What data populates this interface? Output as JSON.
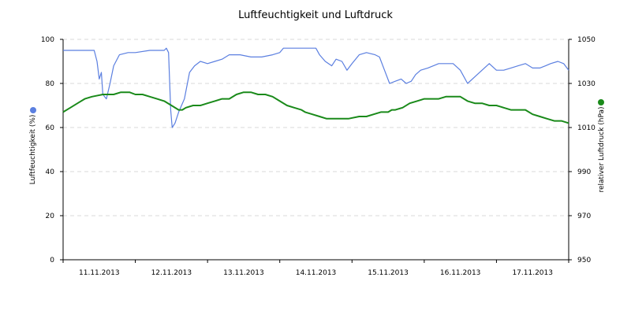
{
  "chart_data": {
    "type": "line",
    "title": "Luftfeuchtigkeit und Luftdruck",
    "categories": [
      "11.11.2013",
      "12.11.2013",
      "13.11.2013",
      "14.11.2013",
      "15.11.2013",
      "16.11.2013",
      "17.11.2013"
    ],
    "x_domain_days": [
      0,
      7
    ],
    "y_left": {
      "label": "Luftfeuchtigkeit (%)",
      "range": [
        0,
        100
      ],
      "ticks": [
        0,
        20,
        40,
        60,
        80,
        100
      ]
    },
    "y_right": {
      "label": "relativer Luftdruck (hPa)",
      "range": [
        950,
        1050
      ],
      "ticks": [
        950,
        970,
        990,
        1010,
        1030,
        1050
      ]
    },
    "grid": true,
    "series": [
      {
        "name": "Luftfeuchtigkeit (%)",
        "axis": "left",
        "color": "#5b7fe0",
        "points": [
          [
            0.0,
            95
          ],
          [
            0.43,
            95
          ],
          [
            0.47,
            90
          ],
          [
            0.5,
            82
          ],
          [
            0.53,
            85
          ],
          [
            0.55,
            75
          ],
          [
            0.6,
            73
          ],
          [
            0.65,
            80
          ],
          [
            0.7,
            88
          ],
          [
            0.78,
            93
          ],
          [
            0.9,
            94
          ],
          [
            1.0,
            94
          ],
          [
            1.2,
            95
          ],
          [
            1.34,
            95
          ],
          [
            1.4,
            95
          ],
          [
            1.43,
            96
          ],
          [
            1.46,
            94
          ],
          [
            1.49,
            68
          ],
          [
            1.51,
            60
          ],
          [
            1.55,
            62
          ],
          [
            1.6,
            67
          ],
          [
            1.68,
            73
          ],
          [
            1.75,
            85
          ],
          [
            1.82,
            88
          ],
          [
            1.9,
            90
          ],
          [
            2.0,
            89
          ],
          [
            2.1,
            90
          ],
          [
            2.2,
            91
          ],
          [
            2.3,
            93
          ],
          [
            2.45,
            93
          ],
          [
            2.6,
            92
          ],
          [
            2.75,
            92
          ],
          [
            2.9,
            93
          ],
          [
            3.0,
            94
          ],
          [
            3.05,
            96
          ],
          [
            3.3,
            96
          ],
          [
            3.5,
            96
          ],
          [
            3.55,
            93
          ],
          [
            3.63,
            90
          ],
          [
            3.72,
            88
          ],
          [
            3.78,
            91
          ],
          [
            3.86,
            90
          ],
          [
            3.93,
            86
          ],
          [
            4.0,
            89
          ],
          [
            4.1,
            93
          ],
          [
            4.2,
            94
          ],
          [
            4.32,
            93
          ],
          [
            4.38,
            92
          ],
          [
            4.45,
            86
          ],
          [
            4.52,
            80
          ],
          [
            4.6,
            81
          ],
          [
            4.68,
            82
          ],
          [
            4.75,
            80
          ],
          [
            4.82,
            81
          ],
          [
            4.88,
            84
          ],
          [
            4.95,
            86
          ],
          [
            5.05,
            87
          ],
          [
            5.2,
            89
          ],
          [
            5.4,
            89
          ],
          [
            5.5,
            86
          ],
          [
            5.6,
            80
          ],
          [
            5.7,
            83
          ],
          [
            5.8,
            86
          ],
          [
            5.9,
            89
          ],
          [
            6.0,
            86
          ],
          [
            6.1,
            86
          ],
          [
            6.2,
            87
          ],
          [
            6.3,
            88
          ],
          [
            6.4,
            89
          ],
          [
            6.5,
            87
          ],
          [
            6.6,
            87
          ],
          [
            6.68,
            88
          ],
          [
            6.75,
            89
          ],
          [
            6.85,
            90
          ],
          [
            6.93,
            89
          ],
          [
            7.0,
            86
          ]
        ]
      },
      {
        "name": "relativer Luftdruck (hPa)",
        "axis": "right",
        "color": "#1a8a1a",
        "points": [
          [
            0.0,
            1017
          ],
          [
            0.1,
            1019
          ],
          [
            0.2,
            1021
          ],
          [
            0.3,
            1023
          ],
          [
            0.4,
            1024
          ],
          [
            0.55,
            1025
          ],
          [
            0.7,
            1025
          ],
          [
            0.8,
            1026
          ],
          [
            0.92,
            1026
          ],
          [
            1.0,
            1025
          ],
          [
            1.1,
            1025
          ],
          [
            1.2,
            1024
          ],
          [
            1.3,
            1023
          ],
          [
            1.4,
            1022
          ],
          [
            1.5,
            1020
          ],
          [
            1.6,
            1018
          ],
          [
            1.65,
            1018
          ],
          [
            1.7,
            1019
          ],
          [
            1.8,
            1020
          ],
          [
            1.9,
            1020
          ],
          [
            2.0,
            1021
          ],
          [
            2.1,
            1022
          ],
          [
            2.2,
            1023
          ],
          [
            2.3,
            1023
          ],
          [
            2.4,
            1025
          ],
          [
            2.5,
            1026
          ],
          [
            2.6,
            1026
          ],
          [
            2.7,
            1025
          ],
          [
            2.8,
            1025
          ],
          [
            2.9,
            1024
          ],
          [
            3.0,
            1022
          ],
          [
            3.1,
            1020
          ],
          [
            3.2,
            1019
          ],
          [
            3.3,
            1018
          ],
          [
            3.35,
            1017
          ],
          [
            3.45,
            1016
          ],
          [
            3.55,
            1015
          ],
          [
            3.65,
            1014
          ],
          [
            3.8,
            1014
          ],
          [
            3.95,
            1014
          ],
          [
            4.1,
            1015
          ],
          [
            4.2,
            1015
          ],
          [
            4.3,
            1016
          ],
          [
            4.4,
            1017
          ],
          [
            4.5,
            1017
          ],
          [
            4.55,
            1018
          ],
          [
            4.6,
            1018
          ],
          [
            4.7,
            1019
          ],
          [
            4.8,
            1021
          ],
          [
            4.9,
            1022
          ],
          [
            5.0,
            1023
          ],
          [
            5.1,
            1023
          ],
          [
            5.2,
            1023
          ],
          [
            5.3,
            1024
          ],
          [
            5.4,
            1024
          ],
          [
            5.5,
            1024
          ],
          [
            5.6,
            1022
          ],
          [
            5.7,
            1021
          ],
          [
            5.8,
            1021
          ],
          [
            5.9,
            1020
          ],
          [
            6.0,
            1020
          ],
          [
            6.1,
            1019
          ],
          [
            6.2,
            1018
          ],
          [
            6.3,
            1018
          ],
          [
            6.4,
            1018
          ],
          [
            6.5,
            1016
          ],
          [
            6.6,
            1015
          ],
          [
            6.7,
            1014
          ],
          [
            6.8,
            1013
          ],
          [
            6.9,
            1013
          ],
          [
            7.0,
            1012
          ]
        ]
      }
    ]
  }
}
